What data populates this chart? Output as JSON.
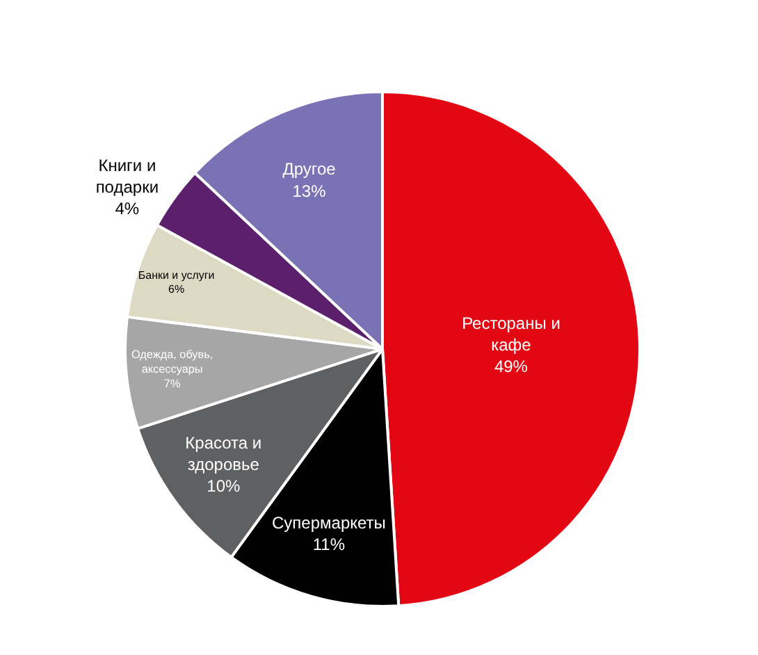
{
  "chart_data": {
    "type": "pie",
    "categories": [
      "Рестораны и\nкафе",
      "Супермаркеты",
      "Красота и\nздоровье",
      "Одежда, обувь,\nаксессуары",
      "Банки и услуги",
      "Книги и\nподарки",
      "Другое"
    ],
    "values": [
      49,
      11,
      10,
      7,
      6,
      4,
      13
    ],
    "value_labels": [
      "49%",
      "11%",
      "10%",
      "7%",
      "6%",
      "4%",
      "13%"
    ],
    "colors": [
      "#e30613",
      "#000000",
      "#5f6062",
      "#a6a6a6",
      "#ddd9c3",
      "#5b1f6b",
      "#7b72b5"
    ],
    "legend": false
  }
}
